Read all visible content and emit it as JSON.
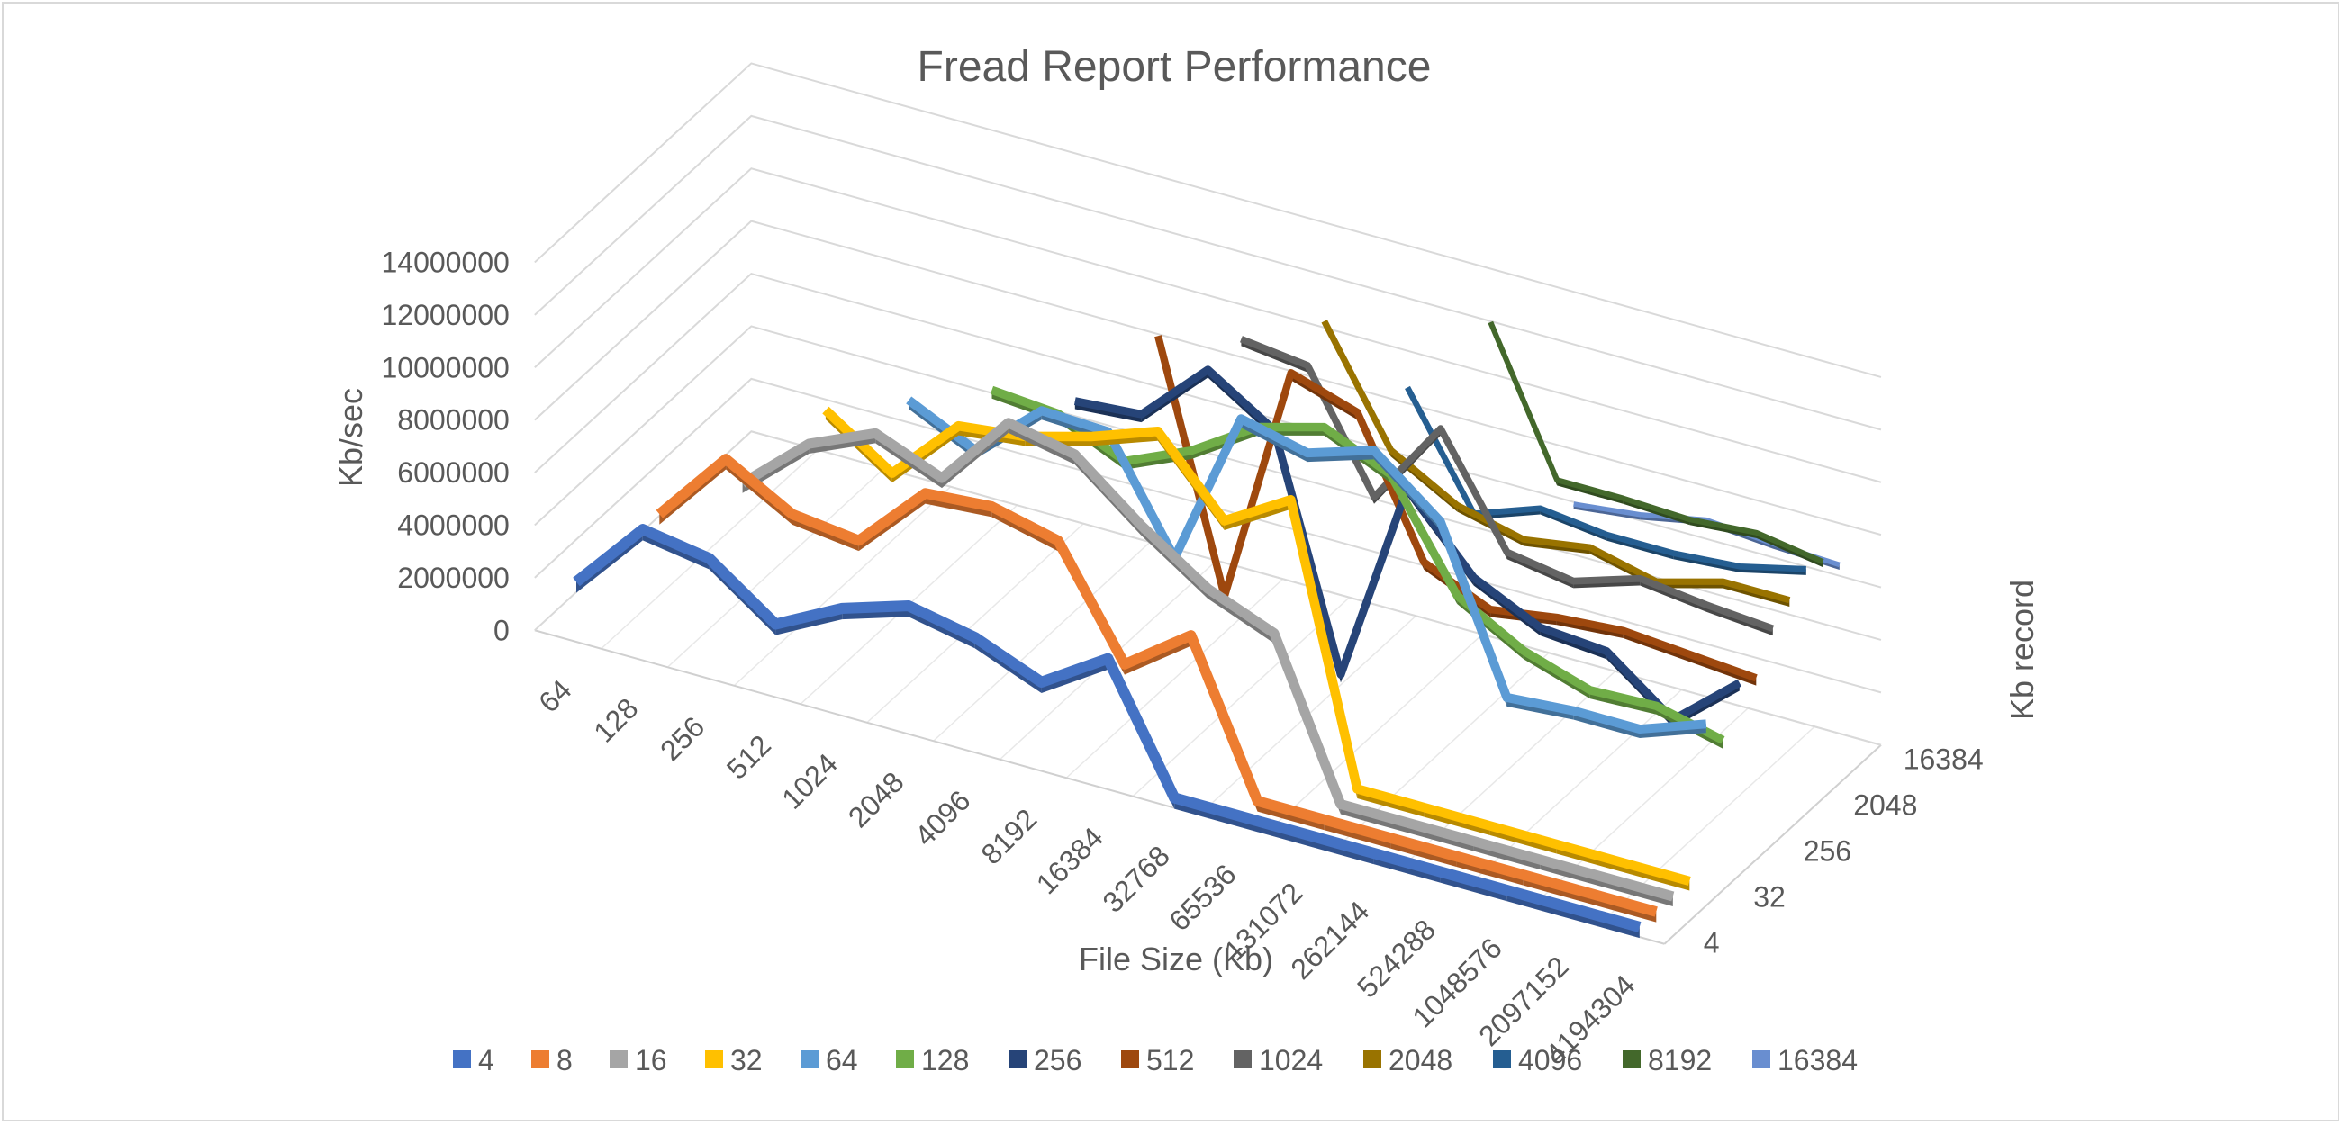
{
  "chart_data": {
    "type": "line",
    "view": "3d",
    "title": "Fread Report Performance",
    "xlabel": "File Size (Kb)",
    "ylabel": "Kb/sec",
    "zlabel": "Kb record",
    "ylim": [
      0,
      14000000
    ],
    "yticks": [
      "0",
      "2000000",
      "4000000",
      "6000000",
      "8000000",
      "10000000",
      "12000000",
      "14000000"
    ],
    "categories": [
      "64",
      "128",
      "256",
      "512",
      "1024",
      "2048",
      "4096",
      "8192",
      "16384",
      "32768",
      "65536",
      "131072",
      "262144",
      "524288",
      "1048576",
      "2097152",
      "4194304"
    ],
    "depth_ticks": [
      "4",
      "32",
      "256",
      "2048",
      "16384"
    ],
    "legend_position": "bottom",
    "grid": true,
    "series": [
      {
        "name": "4",
        "color": "#4472c4",
        "values": [
          1900000,
          4600000,
          4200000,
          2400000,
          3700000,
          4500000,
          4000000,
          3000000,
          4600000,
          0,
          0,
          0,
          0,
          0,
          0,
          0,
          0
        ]
      },
      {
        "name": "8",
        "color": "#ed7d31",
        "values": [
          null,
          4600000,
          7400000,
          6000000,
          5700000,
          8200000,
          8400000,
          7800000,
          3800000,
          5600000,
          0,
          0,
          0,
          0,
          0,
          0,
          0
        ]
      },
      {
        "name": "16",
        "color": "#a5a5a5",
        "values": [
          null,
          null,
          5900000,
          8100000,
          9200000,
          8200000,
          11000000,
          10500000,
          8500000,
          6800000,
          5800000,
          0,
          0,
          0,
          0,
          0,
          0
        ]
      },
      {
        "name": "32",
        "color": "#ffc000",
        "values": [
          null,
          null,
          null,
          8800000,
          7100000,
          9600000,
          9900000,
          10600000,
          11500000,
          8800000,
          10300000,
          0,
          0,
          0,
          0,
          0,
          0
        ]
      },
      {
        "name": "64",
        "color": "#5b9bd5",
        "values": [
          null,
          null,
          null,
          null,
          9300000,
          8100000,
          10300000,
          10200000,
          6100000,
          12100000,
          11500000,
          12300000,
          10300000,
          4300000,
          4500000,
          4500000,
          5400000
        ]
      },
      {
        "name": "128",
        "color": "#70ad47",
        "values": [
          null,
          null,
          null,
          null,
          null,
          9800000,
          9600000,
          8500000,
          9600000,
          11200000,
          11900000,
          10800000,
          6900000,
          5500000,
          4700000,
          4800000,
          4200000
        ]
      },
      {
        "name": "256",
        "color": "#264478",
        "values": [
          null,
          null,
          null,
          null,
          null,
          null,
          9500000,
          9700000,
          12100000,
          10500000,
          1900000,
          9700000,
          7000000,
          5800000,
          5600000,
          3700000,
          5800000
        ]
      },
      {
        "name": "512",
        "color": "#9e480e",
        "values": [
          null,
          null,
          null,
          null,
          null,
          null,
          null,
          12100000,
          2900000,
          12100000,
          11300000,
          6300000,
          5200000,
          5600000,
          5800000,
          5600000,
          5400000
        ]
      },
      {
        "name": "1024",
        "color": "#636363",
        "values": [
          null,
          null,
          null,
          null,
          null,
          null,
          null,
          null,
          12100000,
          11800000,
          7500000,
          10800000,
          6800000,
          6400000,
          7200000,
          6900000,
          6700000
        ]
      },
      {
        "name": "2048",
        "color": "#997300",
        "values": [
          null,
          null,
          null,
          null,
          null,
          null,
          null,
          null,
          null,
          12900000,
          8700000,
          7300000,
          6700000,
          7100000,
          6500000,
          7200000,
          7200000
        ]
      },
      {
        "name": "4096",
        "color": "#255e91",
        "values": [
          null,
          null,
          null,
          null,
          null,
          null,
          null,
          null,
          null,
          null,
          10500000,
          6400000,
          7300000,
          7000000,
          7000000,
          7200000,
          7800000
        ]
      },
      {
        "name": "8192",
        "color": "#43682b",
        "values": [
          null,
          null,
          null,
          null,
          null,
          null,
          null,
          null,
          null,
          null,
          null,
          13100000,
          7800000,
          7800000,
          7700000,
          7900000,
          7500000
        ]
      },
      {
        "name": "16384",
        "color": "#698ed0",
        "values": [
          null,
          null,
          null,
          null,
          null,
          null,
          null,
          null,
          null,
          null,
          null,
          null,
          6300000,
          6600000,
          7100000,
          6900000,
          6800000
        ]
      }
    ]
  }
}
